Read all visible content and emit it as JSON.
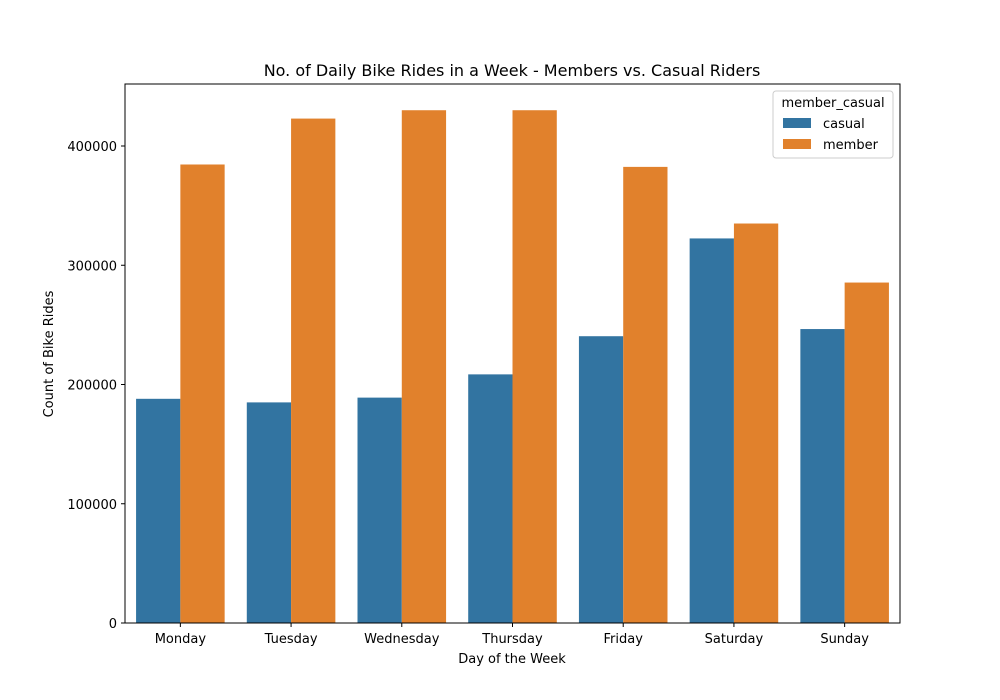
{
  "chart_data": {
    "type": "bar",
    "title": "No. of Daily Bike Rides in a Week - Members vs. Casual Riders",
    "xlabel": "Day of the Week",
    "ylabel": "Count of Bike Rides",
    "categories": [
      "Monday",
      "Tuesday",
      "Wednesday",
      "Thursday",
      "Friday",
      "Saturday",
      "Sunday"
    ],
    "ylim": [
      0,
      452000
    ],
    "yticks": [
      0,
      100000,
      200000,
      300000,
      400000
    ],
    "ytick_labels": [
      "0",
      "100000",
      "200000",
      "300000",
      "400000"
    ],
    "legend": {
      "title": "member_casual",
      "position": "top-right"
    },
    "series": [
      {
        "name": "casual",
        "color": "#3274a1",
        "values": [
          188000,
          185000,
          189000,
          208500,
          240500,
          322500,
          246500
        ]
      },
      {
        "name": "member",
        "color": "#e1812c",
        "values": [
          384500,
          423000,
          430000,
          430000,
          382500,
          335000,
          285500
        ]
      }
    ],
    "grid": false
  }
}
